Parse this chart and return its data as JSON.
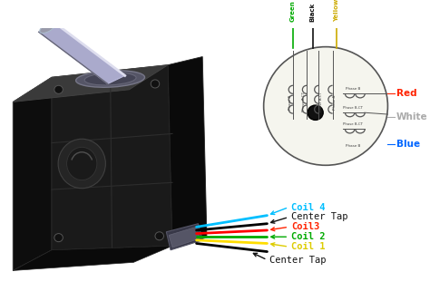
{
  "bg_color": "#ffffff",
  "wire_colors": [
    "#00bfff",
    "#000000",
    "#ff0000",
    "#00aa00",
    "#ffdd00",
    "#000000"
  ],
  "wire_labels": [
    "Coil 4",
    "Center Tap",
    "Coil3",
    "Coil 2",
    "Coil 1",
    "Center Tap"
  ],
  "wire_label_colors": [
    "#00bfff",
    "#111111",
    "#ff2200",
    "#00aa00",
    "#ddcc00",
    "#111111"
  ]
}
